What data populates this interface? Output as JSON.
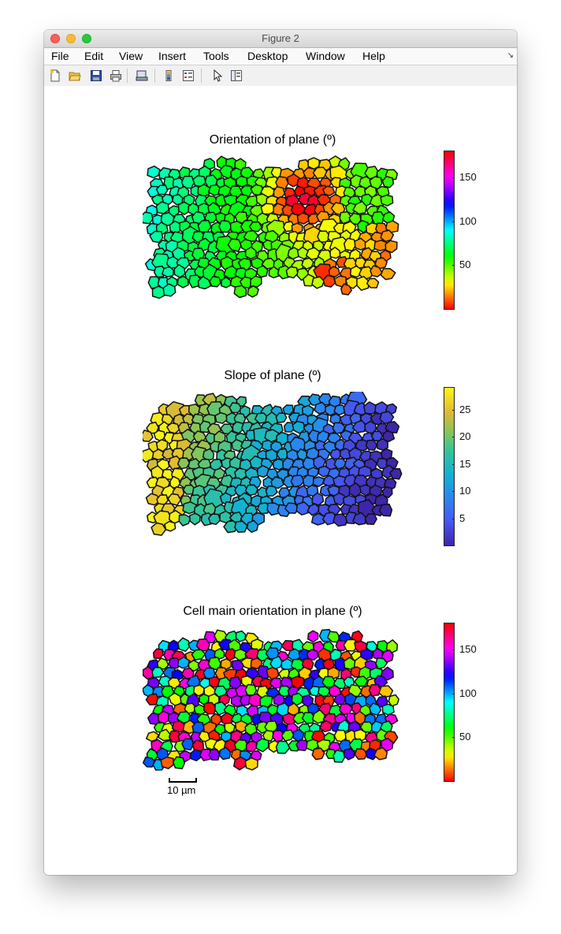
{
  "window": {
    "title": "Figure 2"
  },
  "menu": [
    "File",
    "Edit",
    "View",
    "Insert",
    "Tools",
    "Desktop",
    "Window",
    "Help"
  ],
  "toolbar_icons": [
    "new-figure-icon",
    "open-file-icon",
    "save-icon",
    "print-icon",
    "print-preview-icon",
    "colorbar-toggle-icon",
    "legend-toggle-icon",
    "pointer-icon",
    "property-inspector-icon"
  ],
  "panels": [
    {
      "title": "Orientation of plane (º)",
      "colormap": "hsv",
      "colorbar": {
        "range": [
          0,
          180
        ],
        "ticks": [
          "150",
          "100",
          "50"
        ],
        "tick_values": [
          150,
          100,
          50
        ]
      }
    },
    {
      "title": "Slope of plane (º)",
      "colormap": "parula",
      "colorbar": {
        "range": [
          0,
          29
        ],
        "ticks": [
          "25",
          "20",
          "15",
          "10",
          "5"
        ],
        "tick_values": [
          25,
          20,
          15,
          10,
          5
        ]
      }
    },
    {
      "title": "Cell main orientation in plane (º)",
      "colormap": "hsv",
      "colorbar": {
        "range": [
          0,
          180
        ],
        "ticks": [
          "150",
          "100",
          "50"
        ],
        "tick_values": [
          150,
          100,
          50
        ]
      }
    }
  ],
  "scale_bar": {
    "label": "10 µm"
  }
}
